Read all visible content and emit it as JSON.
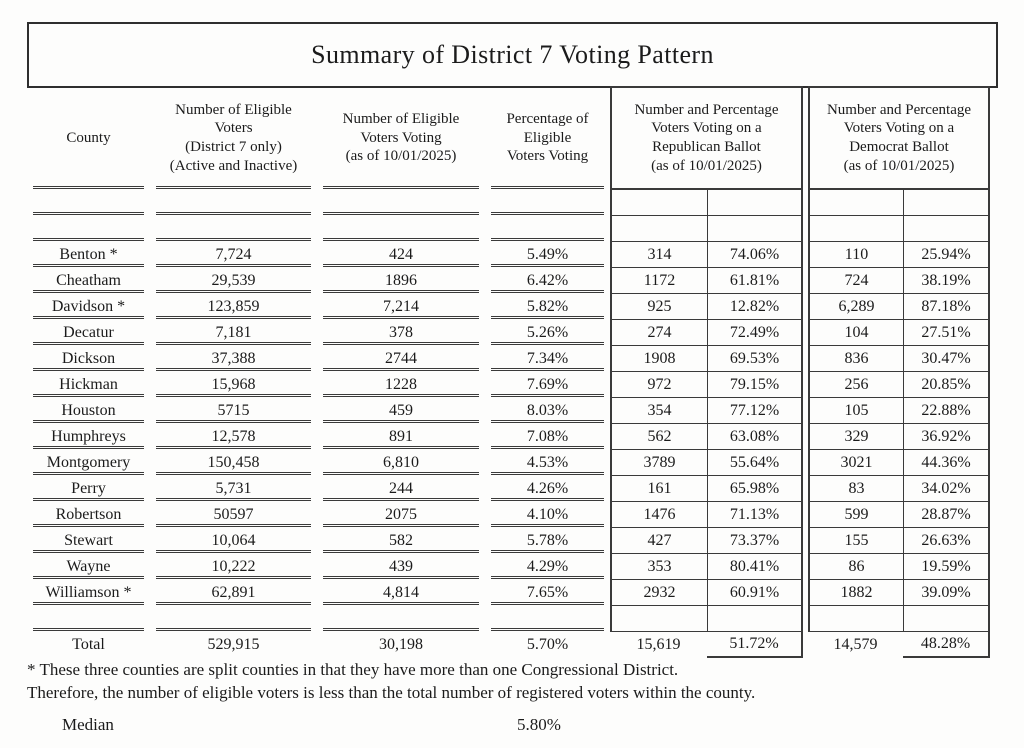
{
  "title": "Summary of District 7 Voting Pattern",
  "table": {
    "headers": {
      "county": "County",
      "eligible": "Number of Eligible\nVoters\n(District 7 only)\n(Active and Inactive)",
      "voting": "Number of Eligible\nVoters Voting\n(as of 10/01/2025)",
      "pct": "Percentage of\nEligible\nVoters Voting",
      "republican": "Number and Percentage\nVoters Voting on a\nRepublican Ballot\n(as of 10/01/2025)",
      "democrat": "Number and Percentage\nVoters Voting on a\nDemocrat Ballot\n(as of 10/01/2025)"
    },
    "rows": [
      {
        "county": "Benton *",
        "eligible": "7,724",
        "voting": "424",
        "pct": "5.49%",
        "rep_n": "314",
        "rep_pct": "74.06%",
        "dem_n": "110",
        "dem_pct": "25.94%"
      },
      {
        "county": "Cheatham",
        "eligible": "29,539",
        "voting": "1896",
        "pct": "6.42%",
        "rep_n": "1172",
        "rep_pct": "61.81%",
        "dem_n": "724",
        "dem_pct": "38.19%"
      },
      {
        "county": "Davidson *",
        "eligible": "123,859",
        "voting": "7,214",
        "pct": "5.82%",
        "rep_n": "925",
        "rep_pct": "12.82%",
        "dem_n": "6,289",
        "dem_pct": "87.18%"
      },
      {
        "county": "Decatur",
        "eligible": "7,181",
        "voting": "378",
        "pct": "5.26%",
        "rep_n": "274",
        "rep_pct": "72.49%",
        "dem_n": "104",
        "dem_pct": "27.51%"
      },
      {
        "county": "Dickson",
        "eligible": "37,388",
        "voting": "2744",
        "pct": "7.34%",
        "rep_n": "1908",
        "rep_pct": "69.53%",
        "dem_n": "836",
        "dem_pct": "30.47%"
      },
      {
        "county": "Hickman",
        "eligible": "15,968",
        "voting": "1228",
        "pct": "7.69%",
        "rep_n": "972",
        "rep_pct": "79.15%",
        "dem_n": "256",
        "dem_pct": "20.85%"
      },
      {
        "county": "Houston",
        "eligible": "5715",
        "voting": "459",
        "pct": "8.03%",
        "rep_n": "354",
        "rep_pct": "77.12%",
        "dem_n": "105",
        "dem_pct": "22.88%"
      },
      {
        "county": "Humphreys",
        "eligible": "12,578",
        "voting": "891",
        "pct": "7.08%",
        "rep_n": "562",
        "rep_pct": "63.08%",
        "dem_n": "329",
        "dem_pct": "36.92%"
      },
      {
        "county": "Montgomery",
        "eligible": "150,458",
        "voting": "6,810",
        "pct": "4.53%",
        "rep_n": "3789",
        "rep_pct": "55.64%",
        "dem_n": "3021",
        "dem_pct": "44.36%"
      },
      {
        "county": "Perry",
        "eligible": "5,731",
        "voting": "244",
        "pct": "4.26%",
        "rep_n": "161",
        "rep_pct": "65.98%",
        "dem_n": "83",
        "dem_pct": "34.02%"
      },
      {
        "county": "Robertson",
        "eligible": "50597",
        "voting": "2075",
        "pct": "4.10%",
        "rep_n": "1476",
        "rep_pct": "71.13%",
        "dem_n": "599",
        "dem_pct": "28.87%"
      },
      {
        "county": "Stewart",
        "eligible": "10,064",
        "voting": "582",
        "pct": "5.78%",
        "rep_n": "427",
        "rep_pct": "73.37%",
        "dem_n": "155",
        "dem_pct": "26.63%"
      },
      {
        "county": "Wayne",
        "eligible": "10,222",
        "voting": "439",
        "pct": "4.29%",
        "rep_n": "353",
        "rep_pct": "80.41%",
        "dem_n": "86",
        "dem_pct": "19.59%"
      },
      {
        "county": "Williamson *",
        "eligible": "62,891",
        "voting": "4,814",
        "pct": "7.65%",
        "rep_n": "2932",
        "rep_pct": "60.91%",
        "dem_n": "1882",
        "dem_pct": "39.09%"
      }
    ],
    "total": {
      "label": "Total",
      "eligible": "529,915",
      "voting": "30,198",
      "pct": "5.70%",
      "rep_n": "15,619",
      "rep_pct": "51.72%",
      "dem_n": "14,579",
      "dem_pct": "48.28%"
    }
  },
  "footnote": {
    "line1": "*  These three counties are split counties in that they have more than one Congressional District.",
    "line2": "Therefore, the number of eligible voters is less than the total number of registered voters within the county.",
    "median_label": "Median",
    "median_value": "5.80%"
  },
  "colors": {
    "ink": "#1b1b1b",
    "line": "#3a3a3a"
  }
}
